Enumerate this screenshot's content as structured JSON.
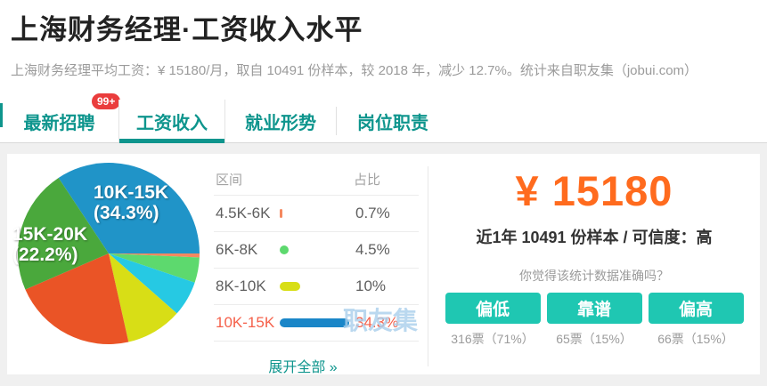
{
  "header": {
    "title": "上海财务经理·工资收入水平",
    "subtitle": "上海财务经理平均工资：¥ 15180/月，取自 10491 份样本，较 2018 年，减少 12.7%。统计来自职友集（jobui.com）"
  },
  "tabs": [
    {
      "label": "最新招聘",
      "badge": "99+",
      "active": false
    },
    {
      "label": "工资收入",
      "active": true
    },
    {
      "label": "就业形势",
      "active": false
    },
    {
      "label": "岗位职责",
      "active": false
    }
  ],
  "chart_data": {
    "type": "pie",
    "start_angle": -33.5,
    "slices": [
      {
        "label": "10K-15K",
        "value": 34.3,
        "color": "#2094c8"
      },
      {
        "label": "4.5K-6K",
        "value": 0.7,
        "color": "#f5885f"
      },
      {
        "label": "6K-8K",
        "value": 4.5,
        "color": "#5dd96e"
      },
      {
        "label": "",
        "value": 6.3,
        "color": "#26c9e3"
      },
      {
        "label": "8K-10K",
        "value": 10,
        "color": "#d8de16"
      },
      {
        "label": "",
        "value": 22.0,
        "color": "#ea5426"
      },
      {
        "label": "15K-20K",
        "value": 22.2,
        "color": "#4aa83c"
      }
    ],
    "labels_on_pie": [
      {
        "line1": "10K-15K",
        "line2": "(34.3%)"
      },
      {
        "line1": "15K-20K",
        "line2": "(22.2%)"
      }
    ],
    "legend_position": "right-table"
  },
  "salary_table": {
    "col_range": "区间",
    "col_share": "占比",
    "rows": [
      {
        "range": "4.5K-6K",
        "share": "0.7%",
        "value": 0.7,
        "color": "#f5885f",
        "highlight": false
      },
      {
        "range": "6K-8K",
        "share": "4.5%",
        "value": 4.5,
        "color": "#5dd96e",
        "highlight": false
      },
      {
        "range": "8K-10K",
        "share": "10%",
        "value": 10,
        "color": "#d8de16",
        "highlight": false
      },
      {
        "range": "10K-15K",
        "share": "34.3%",
        "value": 34.3,
        "color": "#1a86c8",
        "highlight": true
      }
    ],
    "expand_label": "展开全部 »"
  },
  "summary": {
    "salary": "¥ 15180",
    "sample_info": "近1年 10491 份样本 / 可信度：高",
    "question": "你觉得该统计数据准确吗？",
    "votes": [
      {
        "label": "偏低",
        "count": "316票（71%）"
      },
      {
        "label": "靠谱",
        "count": "65票（15%）"
      },
      {
        "label": "偏高",
        "count": "66票（15%）"
      }
    ]
  },
  "watermark": "职友集",
  "colors": {
    "accent_teal": "#0e958d",
    "button_teal": "#1fc7b2",
    "salary_orange": "#ff6b1e",
    "highlight_red": "#f5604a",
    "badge_red": "#ea3d3d"
  }
}
